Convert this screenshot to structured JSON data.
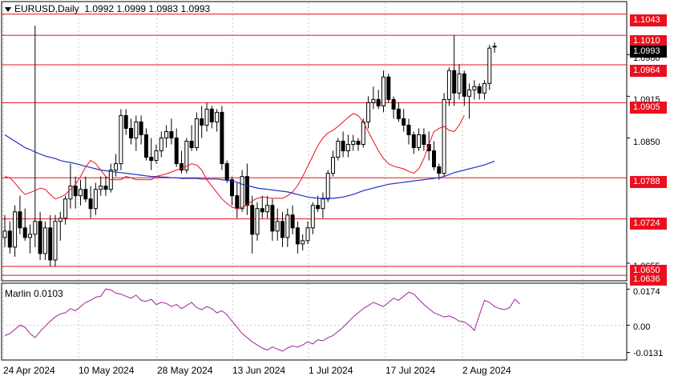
{
  "header": {
    "symbol": "EURUSD,Daily",
    "ohlc": "1.0992 1.0999 1.0983 1.0993"
  },
  "levels": [
    {
      "value": "1.1043"
    },
    {
      "value": "1.1010"
    },
    {
      "value": "1.0964"
    },
    {
      "value": "1.0905"
    },
    {
      "value": "1.0788"
    },
    {
      "value": "1.0724"
    },
    {
      "value": "1.0650"
    },
    {
      "value": "1.0636"
    }
  ],
  "current_price": "1.0993",
  "price_axis": [
    "1.0980",
    "1.0915",
    "1.0850",
    "1.0655"
  ],
  "indicator": {
    "label": "Marlin 0.0103",
    "axis": [
      "0.0174",
      "0.00",
      "-0.0131"
    ]
  },
  "date_axis": [
    "24 Apr 2024",
    "10 May 2024",
    "28 May 2024",
    "13 Jun 2024",
    "1 Jul 2024",
    "17 Jul 2024",
    "2 Aug 2024"
  ],
  "colors": {
    "level_line": "#e8101e",
    "bollinger": "#e8101e",
    "ma": "#2030c8",
    "marlin": "#a020a0",
    "candle": "#000000"
  },
  "chart_data": {
    "type": "candlestick",
    "symbol": "EURUSD",
    "timeframe": "Daily",
    "ylim": [
      1.063,
      1.106
    ],
    "candles": [
      [
        1.0695,
        1.073,
        1.068,
        1.0705
      ],
      [
        1.0705,
        1.072,
        1.067,
        1.068
      ],
      [
        1.068,
        1.0745,
        1.0665,
        1.0735
      ],
      [
        1.0735,
        1.076,
        1.07,
        1.071
      ],
      [
        1.071,
        1.074,
        1.069,
        1.0695
      ],
      [
        1.0695,
        1.0715,
        1.067,
        1.07
      ],
      [
        1.07,
        1.1025,
        1.068,
        1.072
      ],
      [
        1.072,
        1.0735,
        1.066,
        1.067
      ],
      [
        1.067,
        1.072,
        1.066,
        1.071
      ],
      [
        1.071,
        1.073,
        1.065,
        1.066
      ],
      [
        1.066,
        1.073,
        1.065,
        1.072
      ],
      [
        1.072,
        1.0735,
        1.069,
        1.0725
      ],
      [
        1.0725,
        1.076,
        1.0715,
        1.0755
      ],
      [
        1.0755,
        1.081,
        1.074,
        1.0775
      ],
      [
        1.0775,
        1.079,
        1.074,
        1.076
      ],
      [
        1.076,
        1.0785,
        1.0745,
        1.077
      ],
      [
        1.077,
        1.079,
        1.075,
        1.0755
      ],
      [
        1.0755,
        1.0775,
        1.0725,
        1.074
      ],
      [
        1.074,
        1.078,
        1.073,
        1.077
      ],
      [
        1.077,
        1.079,
        1.076,
        1.0775
      ],
      [
        1.0775,
        1.079,
        1.076,
        1.077
      ],
      [
        1.077,
        1.081,
        1.0765,
        1.08
      ],
      [
        1.08,
        1.0825,
        1.079,
        1.081
      ],
      [
        1.081,
        1.0895,
        1.08,
        1.0885
      ],
      [
        1.0885,
        1.0895,
        1.0855,
        1.0865
      ],
      [
        1.0865,
        1.088,
        1.084,
        1.085
      ],
      [
        1.085,
        1.0885,
        1.083,
        1.0875
      ],
      [
        1.0875,
        1.0885,
        1.084,
        1.0855
      ],
      [
        1.0855,
        1.0865,
        1.0815,
        1.082
      ],
      [
        1.082,
        1.085,
        1.08,
        1.0815
      ],
      [
        1.0815,
        1.084,
        1.081,
        1.083
      ],
      [
        1.083,
        1.086,
        1.082,
        1.085
      ],
      [
        1.085,
        1.087,
        1.0835,
        1.086
      ],
      [
        1.086,
        1.088,
        1.084,
        1.085
      ],
      [
        1.085,
        1.0865,
        1.0805,
        1.081
      ],
      [
        1.081,
        1.083,
        1.0795,
        1.08
      ],
      [
        1.08,
        1.085,
        1.0795,
        1.0845
      ],
      [
        1.0845,
        1.087,
        1.083,
        1.0835
      ],
      [
        1.0835,
        1.089,
        1.083,
        1.088
      ],
      [
        1.088,
        1.09,
        1.085,
        1.087
      ],
      [
        1.087,
        1.0905,
        1.086,
        1.0895
      ],
      [
        1.0895,
        1.09,
        1.0865,
        1.0875
      ],
      [
        1.0875,
        1.0895,
        1.086,
        1.089
      ],
      [
        1.089,
        1.09,
        1.08,
        1.081
      ],
      [
        1.081,
        1.0815,
        1.078,
        1.0785
      ],
      [
        1.0785,
        1.079,
        1.0745,
        1.076
      ],
      [
        1.076,
        1.078,
        1.0725,
        1.074
      ],
      [
        1.074,
        1.08,
        1.0735,
        1.079
      ],
      [
        1.079,
        1.081,
        1.073,
        1.0745
      ],
      [
        1.0745,
        1.076,
        1.067,
        1.07
      ],
      [
        1.07,
        1.075,
        1.069,
        1.074
      ],
      [
        1.074,
        1.076,
        1.0725,
        1.0735
      ],
      [
        1.0735,
        1.076,
        1.0725,
        1.0745
      ],
      [
        1.0745,
        1.0755,
        1.069,
        1.0705
      ],
      [
        1.0705,
        1.074,
        1.069,
        1.072
      ],
      [
        1.072,
        1.0735,
        1.068,
        1.0695
      ],
      [
        1.0695,
        1.074,
        1.068,
        1.073
      ],
      [
        1.073,
        1.0745,
        1.07,
        1.071
      ],
      [
        1.071,
        1.072,
        1.067,
        1.0685
      ],
      [
        1.0685,
        1.07,
        1.0675,
        1.069
      ],
      [
        1.069,
        1.072,
        1.0685,
        1.071
      ],
      [
        1.071,
        1.075,
        1.07,
        1.0745
      ],
      [
        1.0745,
        1.076,
        1.0735,
        1.074
      ],
      [
        1.074,
        1.0765,
        1.0725,
        1.0755
      ],
      [
        1.0755,
        1.08,
        1.075,
        1.0795
      ],
      [
        1.0795,
        1.083,
        1.079,
        1.082
      ],
      [
        1.082,
        1.085,
        1.0815,
        1.0845
      ],
      [
        1.0845,
        1.086,
        1.082,
        1.083
      ],
      [
        1.083,
        1.0855,
        1.082,
        1.084
      ],
      [
        1.084,
        1.0855,
        1.083,
        1.0845
      ],
      [
        1.0845,
        1.085,
        1.083,
        1.084
      ],
      [
        1.084,
        1.088,
        1.0835,
        1.0875
      ],
      [
        1.0875,
        1.0915,
        1.0865,
        1.0905
      ],
      [
        1.0905,
        1.093,
        1.0895,
        1.091
      ],
      [
        1.091,
        1.0925,
        1.0895,
        1.09
      ],
      [
        1.09,
        1.0955,
        1.089,
        1.0945
      ],
      [
        1.0945,
        1.095,
        1.0905,
        1.091
      ],
      [
        1.091,
        1.0915,
        1.088,
        1.0895
      ],
      [
        1.0895,
        1.0905,
        1.0875,
        1.088
      ],
      [
        1.088,
        1.0895,
        1.086,
        1.087
      ],
      [
        1.087,
        1.088,
        1.084,
        1.0855
      ],
      [
        1.0855,
        1.086,
        1.0825,
        1.0835
      ],
      [
        1.0835,
        1.0865,
        1.083,
        1.0855
      ],
      [
        1.0855,
        1.0865,
        1.083,
        1.084
      ],
      [
        1.084,
        1.086,
        1.0815,
        1.083
      ],
      [
        1.083,
        1.0845,
        1.08,
        1.0805
      ],
      [
        1.0805,
        1.081,
        1.0785,
        1.0795
      ],
      [
        1.0795,
        1.092,
        1.079,
        1.091
      ],
      [
        1.091,
        1.096,
        1.09,
        1.0955
      ],
      [
        1.0955,
        1.101,
        1.09,
        1.092
      ],
      [
        1.092,
        1.0965,
        1.091,
        1.095
      ],
      [
        1.095,
        1.0955,
        1.09,
        1.0915
      ],
      [
        1.0915,
        1.0935,
        1.088,
        1.0925
      ],
      [
        1.0925,
        1.094,
        1.091,
        1.093
      ],
      [
        1.093,
        1.0935,
        1.091,
        1.092
      ],
      [
        1.092,
        1.094,
        1.091,
        1.0935
      ],
      [
        1.0935,
        1.0995,
        1.0925,
        1.099
      ],
      [
        1.0992,
        1.0999,
        1.0983,
        1.0993
      ]
    ],
    "series": [
      {
        "type": "ma",
        "values": [
          1.0855,
          1.085,
          1.0845,
          1.084,
          1.0835,
          1.0832,
          1.0828,
          1.0825,
          1.0822,
          1.082,
          1.0818,
          1.0815,
          1.0813,
          1.0812,
          1.081,
          1.0808,
          1.0806,
          1.0804,
          1.0802,
          1.08,
          1.0799,
          1.0798,
          1.0797,
          1.0796,
          1.0795,
          1.0794,
          1.0793,
          1.0792,
          1.0791,
          1.079,
          1.079,
          1.0789,
          1.0789,
          1.0788,
          1.0788,
          1.0787,
          1.0787,
          1.0787,
          1.0787,
          1.0786,
          1.0786,
          1.0786,
          1.0786,
          1.0785,
          1.0784,
          1.0783,
          1.0781,
          1.0778,
          1.0776,
          1.0774,
          1.0772,
          1.0771,
          1.077,
          1.0769,
          1.0768,
          1.0767,
          1.0766,
          1.0764,
          1.0762,
          1.076,
          1.0758,
          1.0757,
          1.0756,
          1.0756,
          1.0756,
          1.0756,
          1.0757,
          1.0758,
          1.076,
          1.0762,
          1.0765,
          1.0768,
          1.077,
          1.0772,
          1.0774,
          1.0776,
          1.0778,
          1.0779,
          1.078,
          1.0781,
          1.0782,
          1.0783,
          1.0784,
          1.0785,
          1.0786,
          1.0787,
          1.0788,
          1.079,
          1.0793,
          1.0796,
          1.0798,
          1.08,
          1.0802,
          1.0804,
          1.0806,
          1.0808,
          1.0811,
          1.0814,
          null
        ]
      },
      {
        "type": "bollinger",
        "values": [
          1.079,
          1.0788,
          1.078,
          1.077,
          1.0762,
          1.0765,
          1.0768,
          1.0772,
          1.077,
          1.0762,
          1.0755,
          1.0758,
          1.0762,
          1.077,
          1.0778,
          1.079,
          1.0805,
          1.0815,
          1.081,
          1.08,
          1.079,
          1.0785,
          1.0785,
          1.0785,
          1.079,
          1.0788,
          1.0785,
          1.0785,
          1.0785,
          1.0785,
          1.079,
          1.0792,
          1.0794,
          1.0797,
          1.08,
          1.0803,
          1.0806,
          1.081,
          1.0808,
          1.08,
          1.0785,
          1.0775,
          1.0765,
          1.0755,
          1.0748,
          1.0742,
          1.074,
          1.0742,
          1.0746,
          1.0752,
          1.0756,
          1.0758,
          1.0757,
          1.0756,
          1.0756,
          1.0756,
          1.076,
          1.0766,
          1.0776,
          1.079,
          1.0806,
          1.0822,
          1.0838,
          1.085,
          1.0858,
          1.0862,
          1.0868,
          1.0875,
          1.0882,
          1.0888,
          1.0885,
          1.0875,
          1.086,
          1.0845,
          1.083,
          1.0818,
          1.081,
          1.0806,
          1.0804,
          1.0802,
          1.0798,
          1.0795,
          1.0802,
          1.0818,
          1.084,
          1.086,
          1.0865,
          1.0868,
          1.0862,
          1.086,
          1.087,
          1.0885,
          null
        ]
      }
    ],
    "indicator": {
      "name": "Marlin",
      "value": 0.0103,
      "ylim": [
        -0.016,
        0.0195
      ],
      "values": [
        -0.005,
        -0.004,
        -0.002,
        0.0,
        -0.001,
        -0.004,
        -0.006,
        -0.003,
        -0.0005,
        0.002,
        0.004,
        0.0055,
        0.006,
        0.008,
        0.007,
        0.009,
        0.011,
        0.012,
        0.0135,
        0.014,
        0.0175,
        0.017,
        0.0155,
        0.015,
        0.014,
        0.013,
        0.0145,
        0.012,
        0.0115,
        0.0125,
        0.01,
        0.011,
        0.0105,
        0.009,
        0.01,
        0.008,
        0.0095,
        0.011,
        0.0085,
        0.0075,
        0.009,
        0.008,
        0.006,
        0.007,
        0.005,
        0.002,
        -0.001,
        -0.004,
        -0.006,
        -0.008,
        -0.0095,
        -0.011,
        -0.012,
        -0.0105,
        -0.0115,
        -0.0125,
        -0.011,
        -0.01,
        -0.0105,
        -0.0095,
        -0.008,
        -0.009,
        -0.007,
        -0.0075,
        -0.006,
        -0.005,
        -0.003,
        -0.001,
        0.0015,
        0.004,
        0.006,
        0.008,
        0.0095,
        0.011,
        0.01,
        0.009,
        0.011,
        0.013,
        0.012,
        0.014,
        0.016,
        0.015,
        0.0125,
        0.01,
        0.008,
        0.006,
        0.005,
        0.004,
        0.0045,
        0.0035,
        0.002,
        0.0015,
        0.0,
        -0.0025,
        0.005,
        0.012,
        0.011,
        0.009,
        0.008,
        0.0075,
        0.0085,
        0.0125,
        0.0103
      ]
    },
    "horizontal_levels": [
      1.1043,
      1.101,
      1.0964,
      1.0905,
      1.0788,
      1.0724,
      1.065,
      1.0636
    ]
  }
}
